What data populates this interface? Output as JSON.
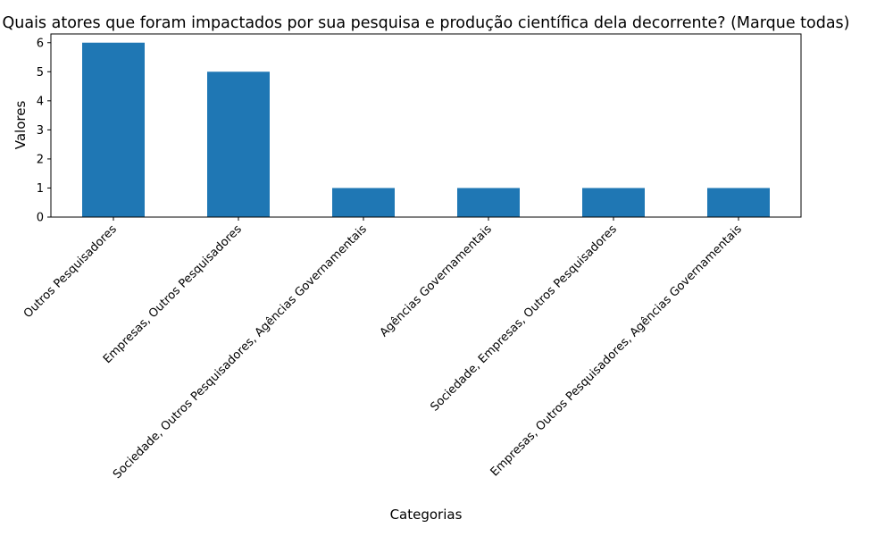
{
  "chart_data": {
    "type": "bar",
    "title": "Quais atores que foram impactados por sua pesquisa e produção científica dela decorrente? (Marque todas)",
    "xlabel": "Categorias",
    "ylabel": "Valores",
    "categories": [
      "Outros Pesquisadores",
      "Empresas, Outros Pesquisadores",
      "Sociedade, Outros Pesquisadores, Agências Governamentais",
      "Agências Governamentais",
      "Sociedade, Empresas, Outros Pesquisadores",
      "Empresas, Outros Pesquisadores, Agências Governamentais"
    ],
    "values": [
      6,
      5,
      1,
      1,
      1,
      1
    ],
    "ylim": [
      0,
      6.3
    ],
    "yticks": [
      0,
      1,
      2,
      3,
      4,
      5,
      6
    ],
    "bar_color": "#1f77b4",
    "grid": false,
    "legend": "none"
  }
}
